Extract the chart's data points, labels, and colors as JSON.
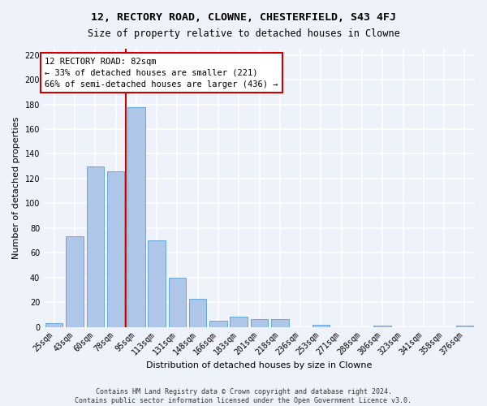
{
  "title": "12, RECTORY ROAD, CLOWNE, CHESTERFIELD, S43 4FJ",
  "subtitle": "Size of property relative to detached houses in Clowne",
  "xlabel": "Distribution of detached houses by size in Clowne",
  "ylabel": "Number of detached properties",
  "footnote1": "Contains HM Land Registry data © Crown copyright and database right 2024.",
  "footnote2": "Contains public sector information licensed under the Open Government Licence v3.0.",
  "bin_labels": [
    "25sqm",
    "43sqm",
    "60sqm",
    "78sqm",
    "95sqm",
    "113sqm",
    "131sqm",
    "148sqm",
    "166sqm",
    "183sqm",
    "201sqm",
    "218sqm",
    "236sqm",
    "253sqm",
    "271sqm",
    "288sqm",
    "306sqm",
    "323sqm",
    "341sqm",
    "358sqm",
    "376sqm"
  ],
  "bar_values": [
    3,
    73,
    130,
    126,
    178,
    70,
    40,
    23,
    5,
    8,
    6,
    6,
    0,
    2,
    0,
    0,
    1,
    0,
    0,
    0,
    1
  ],
  "bar_color": "#aec6e8",
  "bar_edgecolor": "#5a9fd4",
  "vline_x": 3.5,
  "vline_color": "#cc0000",
  "annotation_line1": "12 RECTORY ROAD: 82sqm",
  "annotation_line2": "← 33% of detached houses are smaller (221)",
  "annotation_line3": "66% of semi-detached houses are larger (436) →",
  "annotation_box_color": "#ffffff",
  "annotation_box_edgecolor": "#cc0000",
  "ylim": [
    0,
    225
  ],
  "yticks": [
    0,
    20,
    40,
    60,
    80,
    100,
    120,
    140,
    160,
    180,
    200,
    220
  ],
  "background_color": "#eef2fb",
  "grid_color": "#ffffff",
  "title_fontsize": 9.5,
  "subtitle_fontsize": 8.5,
  "axis_label_fontsize": 8,
  "tick_fontsize": 7,
  "annotation_fontsize": 7.5,
  "footnote_fontsize": 6
}
